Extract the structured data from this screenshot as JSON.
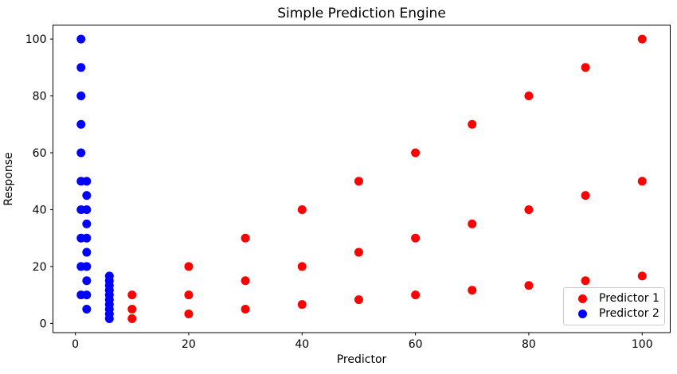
{
  "chart": {
    "title": "Simple Prediction Engine",
    "xlabel": "Predictor",
    "ylabel": "Response"
  },
  "chart_data": {
    "type": "scatter",
    "title": "Simple Prediction Engine",
    "xlabel": "Predictor",
    "ylabel": "Response",
    "xlim": [
      -3.95,
      104.95
    ],
    "ylim": [
      -3.25,
      104.92
    ],
    "xticks": [
      0,
      20,
      40,
      60,
      80,
      100
    ],
    "yticks": [
      0,
      20,
      40,
      60,
      80,
      100
    ],
    "grid": false,
    "legend_position": "lower right",
    "marker_radius_px": 5.5,
    "series": [
      {
        "name": "Predictor 1",
        "color": "#ff0000",
        "points": [
          [
            10,
            10
          ],
          [
            10,
            5
          ],
          [
            10,
            1.667
          ],
          [
            20,
            20
          ],
          [
            20,
            10
          ],
          [
            20,
            3.333
          ],
          [
            30,
            30
          ],
          [
            30,
            15
          ],
          [
            30,
            5
          ],
          [
            40,
            40
          ],
          [
            40,
            20
          ],
          [
            40,
            6.667
          ],
          [
            50,
            50
          ],
          [
            50,
            25
          ],
          [
            50,
            8.333
          ],
          [
            60,
            60
          ],
          [
            60,
            30
          ],
          [
            60,
            10
          ],
          [
            70,
            70
          ],
          [
            70,
            35
          ],
          [
            70,
            11.667
          ],
          [
            80,
            80
          ],
          [
            80,
            40
          ],
          [
            80,
            13.333
          ],
          [
            90,
            90
          ],
          [
            90,
            45
          ],
          [
            90,
            15
          ],
          [
            100,
            100
          ],
          [
            100,
            50
          ],
          [
            100,
            16.667
          ]
        ]
      },
      {
        "name": "Predictor 2",
        "color": "#0000ff",
        "points": [
          [
            1,
            10
          ],
          [
            2,
            5
          ],
          [
            6,
            1.667
          ],
          [
            1,
            20
          ],
          [
            2,
            10
          ],
          [
            6,
            3.333
          ],
          [
            1,
            30
          ],
          [
            2,
            15
          ],
          [
            6,
            5
          ],
          [
            1,
            40
          ],
          [
            2,
            20
          ],
          [
            6,
            6.667
          ],
          [
            1,
            50
          ],
          [
            2,
            25
          ],
          [
            6,
            8.333
          ],
          [
            1,
            60
          ],
          [
            2,
            30
          ],
          [
            6,
            10
          ],
          [
            1,
            70
          ],
          [
            2,
            35
          ],
          [
            6,
            11.667
          ],
          [
            1,
            80
          ],
          [
            2,
            40
          ],
          [
            6,
            13.333
          ],
          [
            1,
            90
          ],
          [
            2,
            45
          ],
          [
            6,
            15
          ],
          [
            1,
            100
          ],
          [
            2,
            50
          ],
          [
            6,
            16.667
          ]
        ]
      }
    ]
  }
}
